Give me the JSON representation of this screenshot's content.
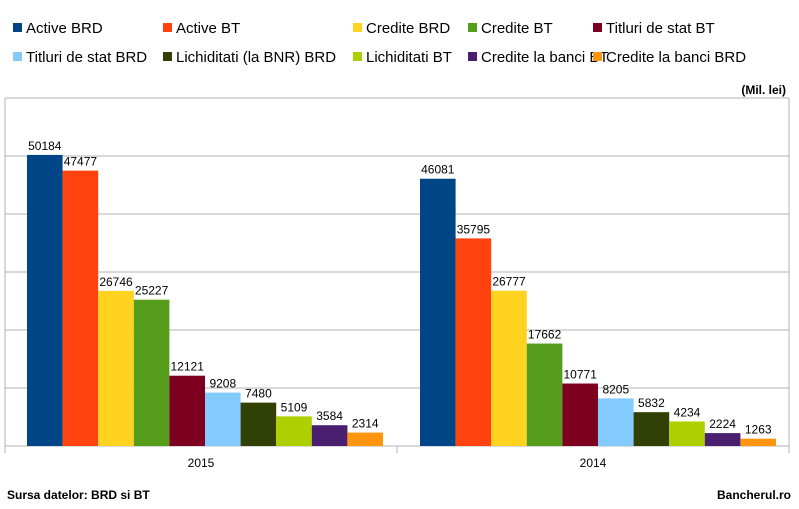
{
  "chart_data": {
    "type": "bar",
    "unit": "(Mil. lei)",
    "categories": [
      "2015",
      "2014"
    ],
    "series": [
      {
        "name": "Active BRD",
        "color": "#004586",
        "values": [
          50184,
          46081
        ]
      },
      {
        "name": "Active BT",
        "color": "#ff420e",
        "values": [
          47477,
          35795
        ]
      },
      {
        "name": "Credite BRD",
        "color": "#ffd320",
        "values": [
          26746,
          26777
        ]
      },
      {
        "name": "Credite BT",
        "color": "#579d1c",
        "values": [
          25227,
          17662
        ]
      },
      {
        "name": "Titluri de stat BT",
        "color": "#7e0021",
        "values": [
          12121,
          10771
        ]
      },
      {
        "name": "Titluri de stat BRD",
        "color": "#83caff",
        "values": [
          9208,
          8205
        ]
      },
      {
        "name": "Lichiditati (la BNR) BRD",
        "color": "#314004",
        "values": [
          7480,
          5832
        ]
      },
      {
        "name": "Lichiditati BT",
        "color": "#aecf00",
        "values": [
          5109,
          4234
        ]
      },
      {
        "name": "Credite la banci BT",
        "color": "#4b1f6f",
        "values": [
          3584,
          2224
        ]
      },
      {
        "name": "Credite la banci BRD",
        "color": "#ff950e",
        "values": [
          2314,
          1263
        ]
      }
    ],
    "ylim": [
      0,
      60000
    ],
    "grid": true,
    "legend_position": "top"
  },
  "footer": {
    "source": "Sursa datelor: BRD si BT",
    "brand": "Bancherul.ro"
  }
}
